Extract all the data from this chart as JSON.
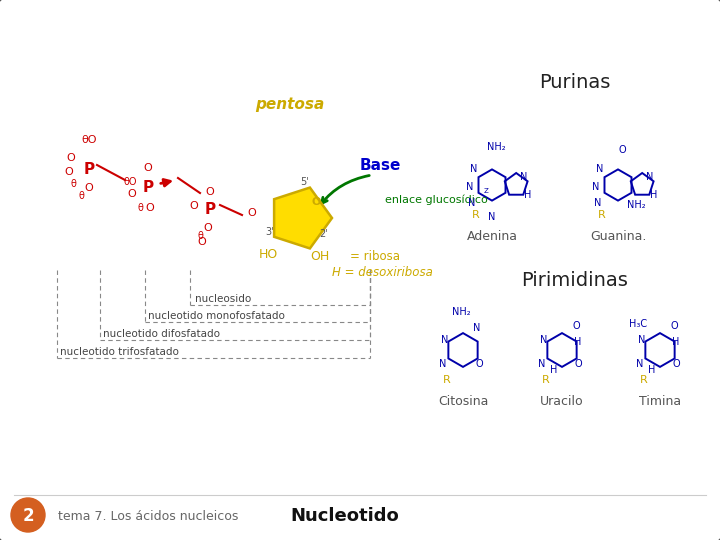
{
  "slide_bg": "#ffffff",
  "border_color": "#555555",
  "slide_number": "2",
  "slide_number_bg": "#d45f20",
  "slide_number_color": "#ffffff",
  "subtitle_text": "tema 7. Los ácidos nucleicos",
  "subtitle_color": "#666666",
  "title_text": "Nucleotido",
  "title_color": "#111111",
  "pentosa_color": "#ccaa00",
  "base_color": "#0000cc",
  "enlace_color": "#007700",
  "sugar_color": "#ccaa00",
  "phosphate_color": "#cc0000",
  "bracket_color": "#888888",
  "ring_color": "#0000aa",
  "footer_line_color": "#cccccc",
  "purinas_label": "Purinas",
  "pirimidinas_label": "Pirimidinas",
  "adenina_label": "Adenina",
  "guanina_label": "Guanina.",
  "citosina_label": "Citosina",
  "uracilo_label": "Uracilo",
  "timina_label": "Timina",
  "nucleosido_label": "nucleosido",
  "mono_label": "nucleotido monofosfatado",
  "di_label": "nucleotido difosfatado",
  "tri_label": "nucleotido trifosfatado"
}
